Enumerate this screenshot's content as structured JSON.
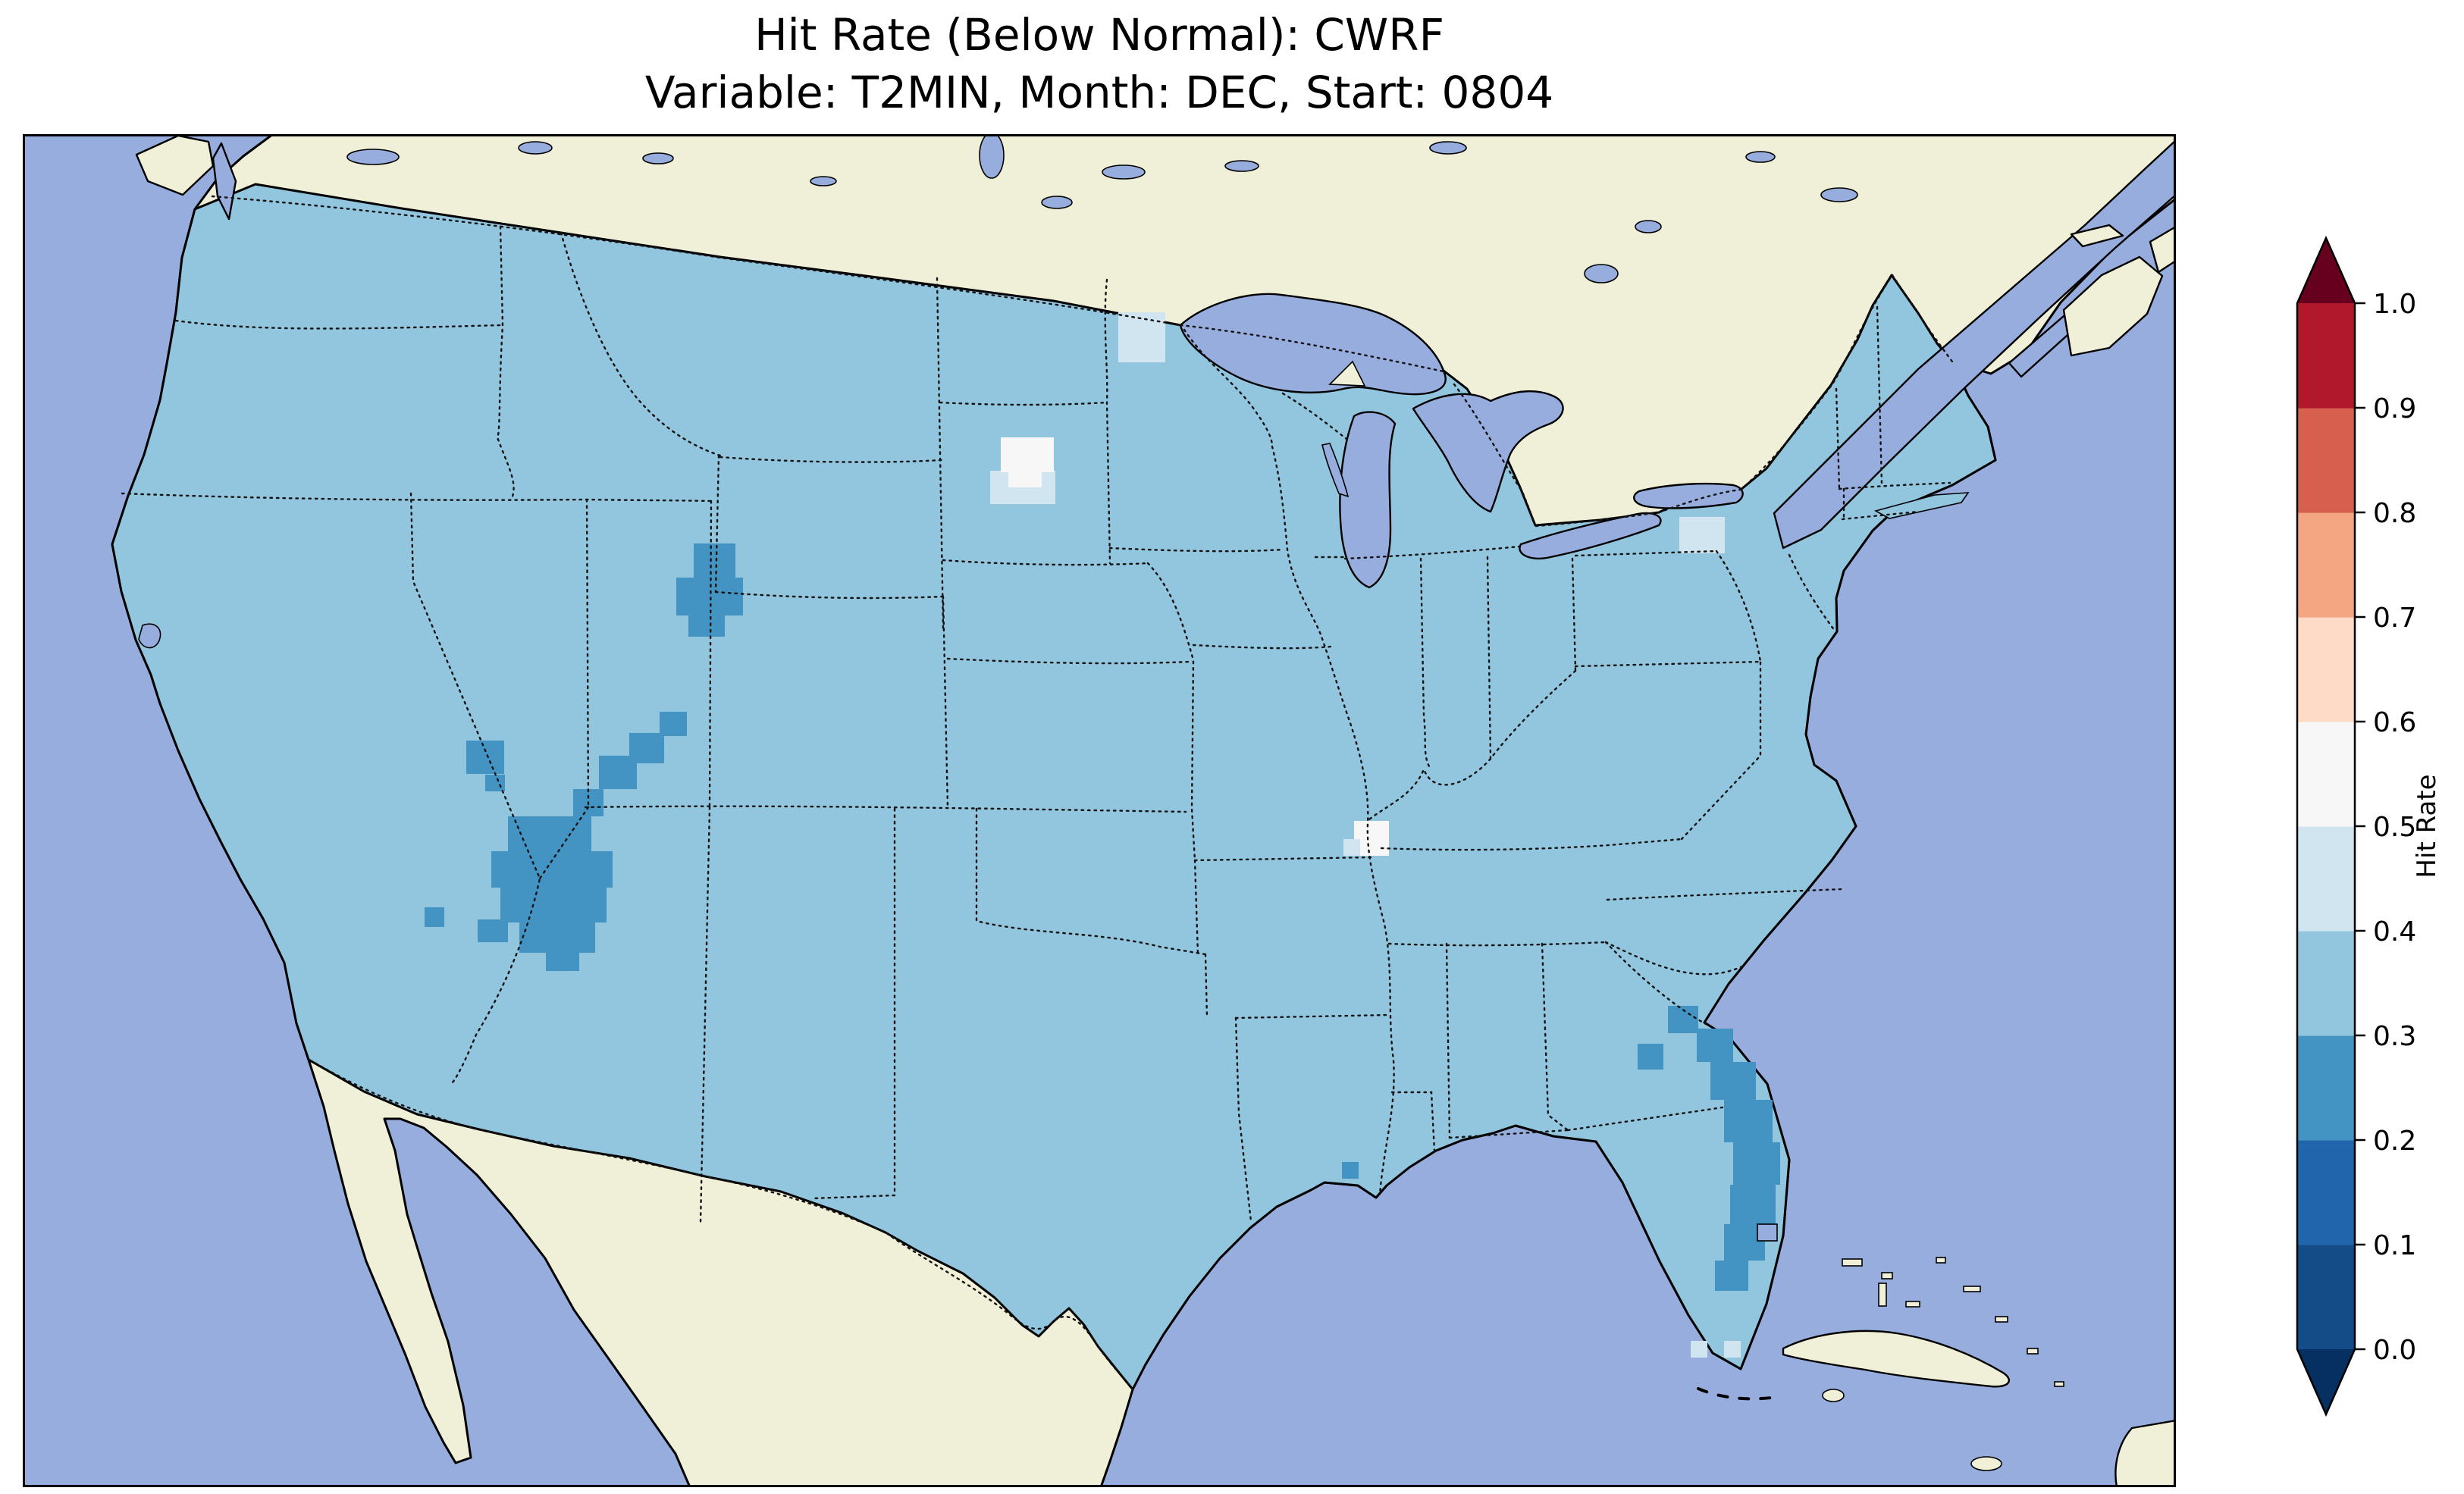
{
  "figure": {
    "title_line1": "Hit Rate (Below Normal): CWRF",
    "title_line2": "Variable: T2MIN, Month: DEC, Start: 0804"
  },
  "map_colors": {
    "ocean": "#96ADDE",
    "land": "#F0F0D9",
    "conus_fill": "#92c5de",
    "coastline": "#000000"
  },
  "colorbar": {
    "label": "Hit Rate",
    "orientation": "vertical",
    "extend": "both",
    "tick_labels": [
      "0.0",
      "0.1",
      "0.2",
      "0.3",
      "0.4",
      "0.5",
      "0.6",
      "0.7",
      "0.8",
      "0.9",
      "1.0"
    ],
    "segment_colors_bottom_to_top": [
      "#134c87",
      "#2166ac",
      "#4393c3",
      "#92c5de",
      "#d1e5f0",
      "#f7f7f7",
      "#fddbc7",
      "#f4a582",
      "#d6604d",
      "#b2182b"
    ],
    "extend_colors": {
      "under": "#053061",
      "over": "#67001f"
    }
  },
  "chart_data": {
    "type": "heatmap",
    "title": "Hit Rate (Below Normal): CWRF",
    "subtitle": "Variable: T2MIN, Month: DEC, Start: 0804",
    "geography": "Continental United States with Canada, Mexico, Great Lakes, Cuba and Bahamas context",
    "value_range": [
      0.0,
      1.0
    ],
    "value_levels": [
      0.0,
      0.1,
      0.2,
      0.3,
      0.4,
      0.5,
      0.6,
      0.7,
      0.8,
      0.9,
      1.0
    ],
    "colormap": "RdBu reversed, discrete, extended both ends",
    "dominant_field_value_bin": "0.3-0.4",
    "region_values": [
      {
        "region": "most of the continental US",
        "hit_rate_bin": "0.3-0.4"
      },
      {
        "region": "central / northwest Arizona into far southern Utah-Nevada",
        "hit_rate_bin": "0.2-0.3"
      },
      {
        "region": "southwest Wyoming / northeast Utah corner",
        "hit_rate_bin": "0.2-0.3"
      },
      {
        "region": "Florida Atlantic coast and southeast Georgia coast",
        "hit_rate_bin": "0.2-0.3"
      },
      {
        "region": "single cell inland Georgia",
        "hit_rate_bin": "0.2-0.3"
      },
      {
        "region": "single cell Louisiana coast",
        "hit_rate_bin": "0.2-0.3"
      },
      {
        "region": "central South Dakota (core)",
        "hit_rate_bin": "0.5-0.6"
      },
      {
        "region": "central South Dakota (fringe)",
        "hit_rate_bin": "0.4-0.5"
      },
      {
        "region": "northwest Minnesota",
        "hit_rate_bin": "0.4-0.5"
      },
      {
        "region": "west Tennessee near Mississippi River",
        "hit_rate_bin": "0.5-0.6"
      },
      {
        "region": "upstate New York near Lake Ontario",
        "hit_rate_bin": "0.4-0.5"
      },
      {
        "region": "south Florida tip cells",
        "hit_rate_bin": "0.4-0.5"
      }
    ],
    "anomaly_patches": [
      {
        "region": "arizona-four-corners",
        "hit_rate_bin": "0.2-0.3",
        "color": "#4393c3",
        "cells": [
          [
            640,
            900,
            110,
            46
          ],
          [
            618,
            946,
            160,
            48
          ],
          [
            630,
            994,
            140,
            46
          ],
          [
            655,
            1040,
            100,
            40
          ],
          [
            690,
            1080,
            44,
            24
          ],
          [
            760,
            820,
            50,
            44
          ],
          [
            800,
            790,
            46,
            40
          ],
          [
            726,
            864,
            40,
            36
          ],
          [
            840,
            762,
            36,
            32
          ],
          [
            585,
            800,
            50,
            44
          ],
          [
            610,
            845,
            26,
            22
          ],
          [
            530,
            1020,
            26,
            26
          ],
          [
            600,
            1036,
            40,
            30
          ]
        ]
      },
      {
        "region": "wyoming-utah-corner",
        "hit_rate_bin": "0.2-0.3",
        "color": "#4393c3",
        "cells": [
          [
            885,
            540,
            55,
            45
          ],
          [
            862,
            585,
            88,
            50
          ],
          [
            878,
            635,
            48,
            28
          ]
        ]
      },
      {
        "region": "florida-georgia-coast",
        "hit_rate_bin": "0.2-0.3",
        "color": "#4393c3",
        "cells": [
          [
            2208,
            1180,
            48,
            44
          ],
          [
            2226,
            1224,
            60,
            50
          ],
          [
            2244,
            1274,
            64,
            56
          ],
          [
            2256,
            1330,
            62,
            56
          ],
          [
            2252,
            1386,
            60,
            52
          ],
          [
            2244,
            1438,
            54,
            48
          ],
          [
            2232,
            1486,
            44,
            40
          ],
          [
            2170,
            1150,
            40,
            36
          ],
          [
            2130,
            1200,
            34,
            34
          ]
        ]
      },
      {
        "region": "louisiana-coast-cell",
        "hit_rate_bin": "0.2-0.3",
        "color": "#4393c3",
        "cells": [
          [
            1740,
            1356,
            22,
            22
          ]
        ]
      },
      {
        "region": "south-dakota-fringe",
        "hit_rate_bin": "0.4-0.5",
        "color": "#d1e5f0",
        "cells": [
          [
            1276,
            444,
            86,
            44
          ]
        ]
      },
      {
        "region": "south-dakota-core",
        "hit_rate_bin": "0.5-0.6",
        "color": "#f7f7f7",
        "cells": [
          [
            1290,
            400,
            70,
            46
          ],
          [
            1300,
            444,
            44,
            22
          ]
        ]
      },
      {
        "region": "northwest-minnesota",
        "hit_rate_bin": "0.4-0.5",
        "color": "#d1e5f0",
        "cells": [
          [
            1445,
            235,
            62,
            66
          ]
        ]
      },
      {
        "region": "west-tennessee",
        "hit_rate_bin": "0.5-0.6",
        "color": "#f7f7f7",
        "cells": [
          [
            1756,
            906,
            46,
            46
          ]
        ]
      },
      {
        "region": "west-tennessee-fringe",
        "hit_rate_bin": "0.4-0.5",
        "color": "#d1e5f0",
        "cells": [
          [
            1742,
            930,
            22,
            22
          ]
        ]
      },
      {
        "region": "new-york-lake-ontario",
        "hit_rate_bin": "0.4-0.5",
        "color": "#d1e5f0",
        "cells": [
          [
            2185,
            505,
            60,
            48
          ]
        ]
      },
      {
        "region": "south-florida-tip",
        "hit_rate_bin": "0.4-0.5",
        "color": "#d1e5f0",
        "cells": [
          [
            2200,
            1592,
            22,
            22
          ],
          [
            2244,
            1592,
            22,
            22
          ]
        ]
      }
    ]
  }
}
